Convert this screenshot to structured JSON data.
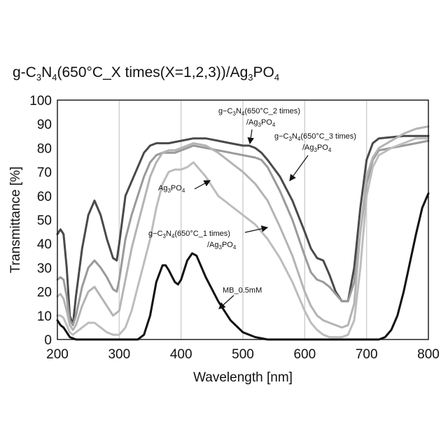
{
  "chart_data": {
    "type": "line",
    "title": "g-C3N4(650°C_X times(X=1,2,3))/Ag3PO4",
    "xlabel": "Wavelength [nm]",
    "ylabel": "Transmittance [%]",
    "xlim": [
      200,
      800
    ],
    "ylim": [
      0,
      100
    ],
    "x_ticks": [
      200,
      300,
      400,
      500,
      600,
      700,
      800
    ],
    "y_ticks": [
      0,
      10,
      20,
      30,
      40,
      50,
      60,
      70,
      80,
      90,
      100
    ],
    "grid": "vertical",
    "series": [
      {
        "name": "g-C3N4(650°C_2 times)/Ag3PO4",
        "color": "#4a4a4a",
        "points": [
          [
            200,
            44
          ],
          [
            205,
            46
          ],
          [
            210,
            44
          ],
          [
            215,
            30
          ],
          [
            220,
            10
          ],
          [
            225,
            6
          ],
          [
            230,
            18
          ],
          [
            240,
            38
          ],
          [
            250,
            52
          ],
          [
            260,
            58
          ],
          [
            270,
            52
          ],
          [
            280,
            42
          ],
          [
            290,
            34
          ],
          [
            296,
            33
          ],
          [
            300,
            40
          ],
          [
            310,
            60
          ],
          [
            320,
            66
          ],
          [
            330,
            72
          ],
          [
            340,
            78
          ],
          [
            350,
            81
          ],
          [
            360,
            82
          ],
          [
            370,
            82
          ],
          [
            380,
            82
          ],
          [
            390,
            82.5
          ],
          [
            400,
            83
          ],
          [
            420,
            84
          ],
          [
            440,
            84
          ],
          [
            460,
            83
          ],
          [
            480,
            82
          ],
          [
            500,
            81
          ],
          [
            510,
            81
          ],
          [
            520,
            80
          ],
          [
            530,
            78
          ],
          [
            540,
            75
          ],
          [
            560,
            68
          ],
          [
            580,
            58
          ],
          [
            600,
            45
          ],
          [
            610,
            38
          ],
          [
            620,
            34
          ],
          [
            630,
            33
          ],
          [
            640,
            27
          ],
          [
            650,
            20
          ],
          [
            660,
            16
          ],
          [
            670,
            16
          ],
          [
            680,
            30
          ],
          [
            690,
            55
          ],
          [
            700,
            75
          ],
          [
            710,
            82
          ],
          [
            720,
            84
          ],
          [
            740,
            84.5
          ],
          [
            760,
            85
          ],
          [
            780,
            85
          ],
          [
            800,
            85
          ]
        ]
      },
      {
        "name": "g-C3N4(650°C_3 times)/Ag3PO4",
        "color": "#9a9a9a",
        "points": [
          [
            200,
            25
          ],
          [
            205,
            26
          ],
          [
            210,
            25
          ],
          [
            215,
            18
          ],
          [
            220,
            8
          ],
          [
            225,
            6
          ],
          [
            230,
            10
          ],
          [
            240,
            22
          ],
          [
            250,
            30
          ],
          [
            260,
            33
          ],
          [
            270,
            30
          ],
          [
            280,
            26
          ],
          [
            290,
            21
          ],
          [
            296,
            20
          ],
          [
            300,
            25
          ],
          [
            310,
            42
          ],
          [
            320,
            52
          ],
          [
            330,
            60
          ],
          [
            340,
            68
          ],
          [
            350,
            74
          ],
          [
            360,
            77
          ],
          [
            370,
            78
          ],
          [
            380,
            78
          ],
          [
            390,
            78
          ],
          [
            400,
            79
          ],
          [
            420,
            81
          ],
          [
            440,
            80
          ],
          [
            460,
            79
          ],
          [
            480,
            78
          ],
          [
            500,
            77
          ],
          [
            520,
            76
          ],
          [
            530,
            75
          ],
          [
            540,
            72
          ],
          [
            560,
            62
          ],
          [
            580,
            50
          ],
          [
            600,
            35
          ],
          [
            610,
            28
          ],
          [
            620,
            25
          ],
          [
            630,
            24
          ],
          [
            640,
            22
          ],
          [
            650,
            19
          ],
          [
            660,
            16
          ],
          [
            670,
            16
          ],
          [
            680,
            24
          ],
          [
            690,
            45
          ],
          [
            700,
            65
          ],
          [
            710,
            75
          ],
          [
            720,
            79
          ],
          [
            740,
            80
          ],
          [
            760,
            81
          ],
          [
            780,
            82
          ],
          [
            800,
            83
          ]
        ]
      },
      {
        "name": "g-C3N4(650°C_1 times)/Ag3PO4",
        "color": "#b4b4b4",
        "points": [
          [
            200,
            18
          ],
          [
            205,
            19
          ],
          [
            210,
            17
          ],
          [
            215,
            12
          ],
          [
            220,
            6
          ],
          [
            225,
            4
          ],
          [
            230,
            6
          ],
          [
            240,
            14
          ],
          [
            250,
            20
          ],
          [
            260,
            22
          ],
          [
            270,
            18
          ],
          [
            280,
            14
          ],
          [
            290,
            10
          ],
          [
            300,
            12
          ],
          [
            310,
            25
          ],
          [
            320,
            38
          ],
          [
            330,
            48
          ],
          [
            340,
            58
          ],
          [
            350,
            68
          ],
          [
            360,
            74
          ],
          [
            370,
            78
          ],
          [
            380,
            79
          ],
          [
            390,
            79
          ],
          [
            400,
            80
          ],
          [
            420,
            82
          ],
          [
            440,
            81
          ],
          [
            460,
            78
          ],
          [
            480,
            74
          ],
          [
            500,
            70
          ],
          [
            520,
            65
          ],
          [
            540,
            58
          ],
          [
            560,
            47
          ],
          [
            580,
            35
          ],
          [
            600,
            20
          ],
          [
            610,
            14
          ],
          [
            620,
            10
          ],
          [
            630,
            8
          ],
          [
            640,
            7
          ],
          [
            650,
            6
          ],
          [
            660,
            5
          ],
          [
            670,
            6
          ],
          [
            680,
            15
          ],
          [
            690,
            45
          ],
          [
            700,
            68
          ],
          [
            710,
            76
          ],
          [
            720,
            80
          ],
          [
            740,
            83
          ],
          [
            760,
            86
          ],
          [
            780,
            88
          ],
          [
            800,
            89
          ]
        ]
      },
      {
        "name": "Ag3PO4",
        "color": "#bdbdbd",
        "points": [
          [
            200,
            10
          ],
          [
            205,
            10
          ],
          [
            210,
            9
          ],
          [
            215,
            6
          ],
          [
            220,
            3
          ],
          [
            225,
            2
          ],
          [
            230,
            3
          ],
          [
            240,
            5
          ],
          [
            250,
            7
          ],
          [
            260,
            7
          ],
          [
            270,
            5
          ],
          [
            280,
            3
          ],
          [
            290,
            2
          ],
          [
            300,
            2
          ],
          [
            310,
            5
          ],
          [
            320,
            12
          ],
          [
            330,
            22
          ],
          [
            340,
            32
          ],
          [
            350,
            42
          ],
          [
            360,
            55
          ],
          [
            370,
            65
          ],
          [
            380,
            70
          ],
          [
            390,
            71
          ],
          [
            400,
            71
          ],
          [
            410,
            72
          ],
          [
            420,
            74
          ],
          [
            440,
            68
          ],
          [
            460,
            60
          ],
          [
            480,
            56
          ],
          [
            500,
            52
          ],
          [
            520,
            48
          ],
          [
            540,
            42
          ],
          [
            560,
            34
          ],
          [
            580,
            24
          ],
          [
            600,
            12
          ],
          [
            610,
            7
          ],
          [
            620,
            4
          ],
          [
            630,
            2
          ],
          [
            640,
            1
          ],
          [
            660,
            1
          ],
          [
            670,
            2
          ],
          [
            680,
            8
          ],
          [
            690,
            30
          ],
          [
            700,
            60
          ],
          [
            710,
            72
          ],
          [
            720,
            77
          ],
          [
            740,
            80
          ],
          [
            760,
            82
          ],
          [
            780,
            84
          ],
          [
            800,
            84
          ]
        ]
      },
      {
        "name": "MB_0.5mM",
        "color": "#111111",
        "points": [
          [
            200,
            8
          ],
          [
            205,
            6
          ],
          [
            210,
            5
          ],
          [
            215,
            3
          ],
          [
            220,
            1
          ],
          [
            225,
            0.5
          ],
          [
            230,
            0
          ],
          [
            330,
            0
          ],
          [
            340,
            2
          ],
          [
            350,
            10
          ],
          [
            360,
            24
          ],
          [
            370,
            31
          ],
          [
            375,
            31
          ],
          [
            380,
            29
          ],
          [
            390,
            24
          ],
          [
            395,
            23
          ],
          [
            400,
            25
          ],
          [
            410,
            33
          ],
          [
            418,
            36
          ],
          [
            425,
            35
          ],
          [
            440,
            26
          ],
          [
            460,
            16
          ],
          [
            480,
            8
          ],
          [
            500,
            3
          ],
          [
            520,
            1
          ],
          [
            540,
            0
          ],
          [
            720,
            0
          ],
          [
            730,
            1
          ],
          [
            740,
            4
          ],
          [
            750,
            10
          ],
          [
            760,
            20
          ],
          [
            770,
            32
          ],
          [
            780,
            44
          ],
          [
            790,
            55
          ],
          [
            800,
            61
          ]
        ]
      }
    ],
    "annotations": [
      {
        "line1": "g-C3N4(650°C_2 times)",
        "line2": "/Ag3PO4"
      },
      {
        "line1": "g-C3N4(650°C_3 times)",
        "line2": "/Ag3PO4"
      },
      {
        "line1": "Ag3PO4",
        "line2": ""
      },
      {
        "line1": "g-C3N4(650°C_1 times)",
        "line2": "/Ag3PO4"
      },
      {
        "line1": "MB_0.5mM",
        "line2": ""
      }
    ]
  }
}
